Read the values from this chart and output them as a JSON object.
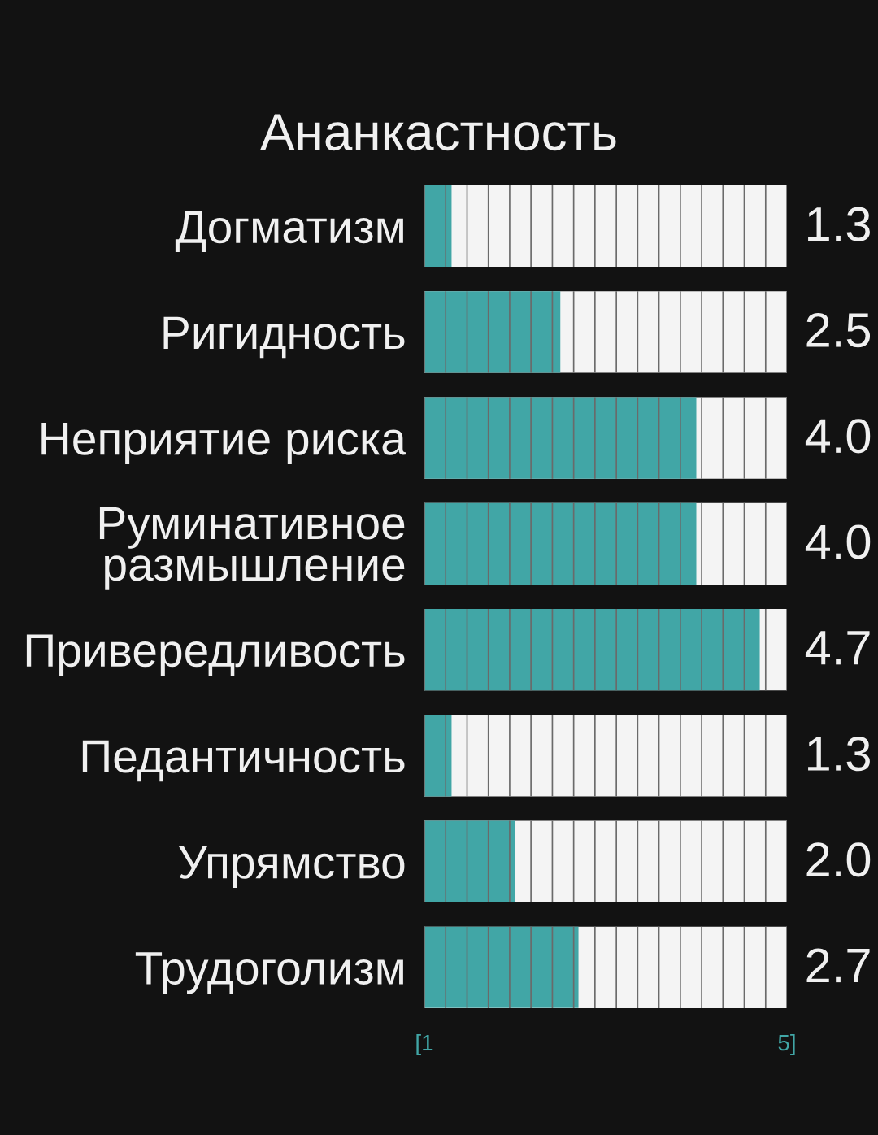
{
  "chart_data": {
    "type": "bar",
    "orientation": "horizontal",
    "title": "Ананкастность",
    "categories": [
      "Догматизм",
      "Ригидность",
      "Неприятие риска",
      "Руминативное\nразмышление",
      "Привередливость",
      "Педантичность",
      "Упрямство",
      "Трудоголизм"
    ],
    "values": [
      1.3,
      2.5,
      4.0,
      4.0,
      4.7,
      1.3,
      2.0,
      2.7
    ],
    "value_labels": [
      "1.3",
      "2.5",
      "4.0",
      "4.0",
      "4.7",
      "1.3",
      "2.0",
      "2.7"
    ],
    "color": "#41a6a6",
    "xlim": [
      1,
      5
    ],
    "xticks": [
      {
        "value": 1,
        "label": "[1"
      },
      {
        "value": 1.235,
        "label": null
      },
      {
        "value": 1.471,
        "label": null
      },
      {
        "value": 1.706,
        "label": null
      },
      {
        "value": 1.941,
        "label": null
      },
      {
        "value": 2.176,
        "label": null
      },
      {
        "value": 2.412,
        "label": null
      },
      {
        "value": 2.647,
        "label": null
      },
      {
        "value": 2.882,
        "label": null
      },
      {
        "value": 3.118,
        "label": null
      },
      {
        "value": 3.353,
        "label": null
      },
      {
        "value": 3.588,
        "label": null
      },
      {
        "value": 3.824,
        "label": null
      },
      {
        "value": 4.059,
        "label": null
      },
      {
        "value": 4.294,
        "label": null
      },
      {
        "value": 4.529,
        "label": null
      },
      {
        "value": 4.765,
        "label": null
      },
      {
        "value": 5,
        "label": "5]"
      }
    ],
    "grid": "x"
  }
}
